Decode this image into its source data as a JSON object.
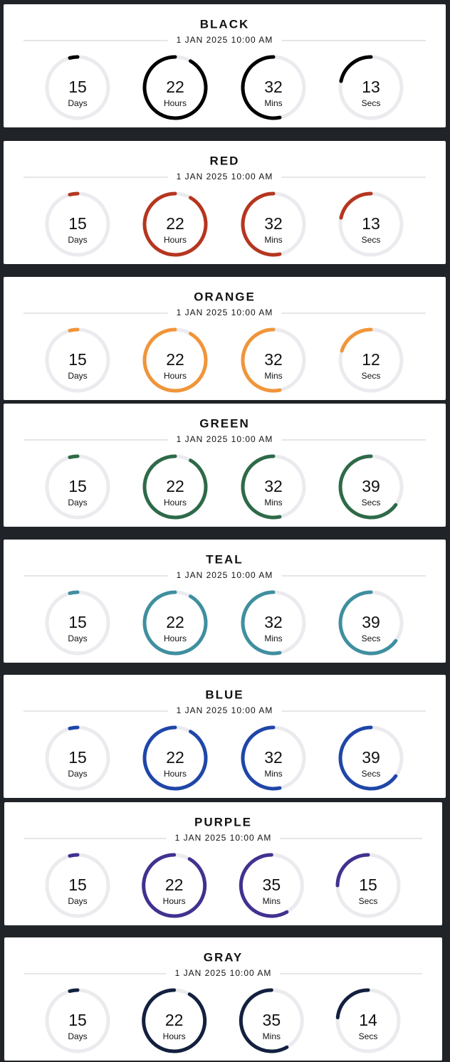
{
  "units": [
    {
      "label": "Days",
      "max": 365
    },
    {
      "label": "Hours",
      "max": 24
    },
    {
      "label": "Mins",
      "max": 60
    },
    {
      "label": "Secs",
      "max": 60
    }
  ],
  "timers": [
    {
      "title": "BLACK",
      "date": "1 JAN 2025 10:00 AM",
      "color": "#000000",
      "values": [
        15,
        22,
        32,
        13
      ]
    },
    {
      "title": "RED",
      "date": "1 JAN 2025 10:00 AM",
      "color": "#b5361f",
      "values": [
        15,
        22,
        32,
        13
      ]
    },
    {
      "title": "ORANGE",
      "date": "1 JAN 2025 10:00 AM",
      "color": "#f0953a",
      "values": [
        15,
        22,
        32,
        12
      ]
    },
    {
      "title": "GREEN",
      "date": "1 JAN 2025 10:00 AM",
      "color": "#2e6a48",
      "values": [
        15,
        22,
        32,
        39
      ]
    },
    {
      "title": "TEAL",
      "date": "1 JAN 2025 10:00 AM",
      "color": "#3f8fa0",
      "values": [
        15,
        22,
        32,
        39
      ]
    },
    {
      "title": "BLUE",
      "date": "1 JAN 2025 10:00 AM",
      "color": "#1f46a8",
      "values": [
        15,
        22,
        32,
        39
      ]
    },
    {
      "title": "PURPLE",
      "date": "1 JAN 2025 10:00 AM",
      "color": "#3f3290",
      "values": [
        15,
        22,
        35,
        15
      ]
    },
    {
      "title": "GRAY",
      "date": "1 JAN 2025 10:00 AM",
      "color": "#13203f",
      "values": [
        15,
        22,
        35,
        14
      ]
    }
  ]
}
